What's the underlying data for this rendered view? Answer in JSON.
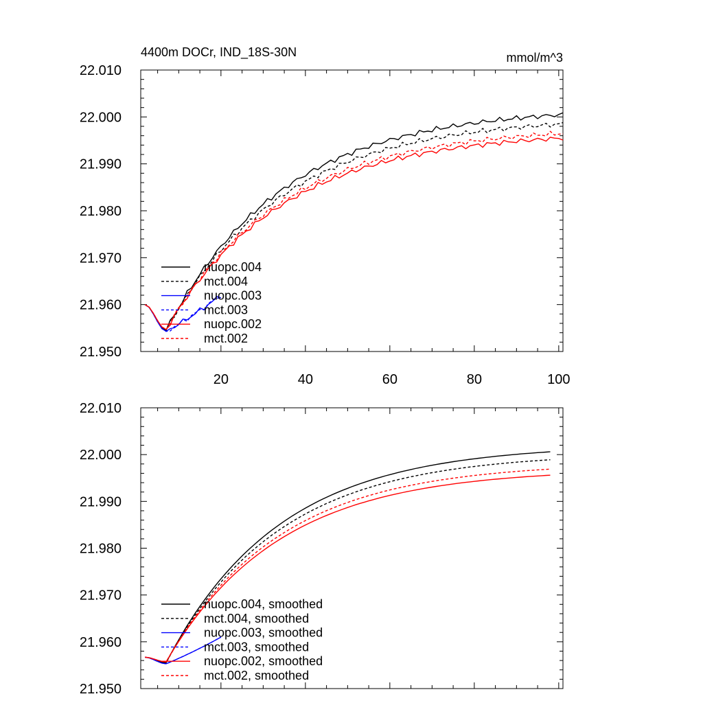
{
  "chart_data": [
    {
      "type": "line",
      "title": "4400m DOCr, IND_18S-30N",
      "units": "mmol/m^3",
      "xlim": [
        1,
        101
      ],
      "ylim": [
        21.95,
        22.01
      ],
      "yticks": [
        "21.950",
        "21.960",
        "21.970",
        "21.980",
        "21.990",
        "22.000",
        "22.010"
      ],
      "xticks": [
        "20",
        "40",
        "60",
        "80",
        "100"
      ],
      "legend_position": "lower-left",
      "noisy": true,
      "series": [
        {
          "name": "nuopc.004",
          "color": "#000000",
          "dash": false,
          "start": 21.96,
          "min": 21.9545,
          "end": 22.0005
        },
        {
          "name": "mct.004",
          "color": "#000000",
          "dash": true,
          "start": 21.96,
          "min": 21.9545,
          "end": 21.9985
        },
        {
          "name": "nuopc.003",
          "color": "#0000ff",
          "dash": false,
          "start": 21.96,
          "min": 21.9543,
          "end": 21.962
        },
        {
          "name": "mct.003",
          "color": "#0000ff",
          "dash": true,
          "start": 21.96,
          "min": 21.9543,
          "end": 21.962
        },
        {
          "name": "nuopc.002",
          "color": "#ff0000",
          "dash": false,
          "start": 21.96,
          "min": 21.9547,
          "end": 21.9955
        },
        {
          "name": "mct.002",
          "color": "#ff0000",
          "dash": true,
          "start": 21.96,
          "min": 21.9547,
          "end": 21.9965
        }
      ]
    },
    {
      "type": "line",
      "title": "",
      "units": "",
      "xlim": [
        1,
        101
      ],
      "ylim": [
        21.95,
        22.01
      ],
      "yticks": [
        "21.950",
        "21.960",
        "21.970",
        "21.980",
        "21.990",
        "22.000",
        "22.010"
      ],
      "xticks": [],
      "legend_position": "lower-left",
      "noisy": false,
      "series": [
        {
          "name": "nuopc.004, smoothed",
          "color": "#000000",
          "dash": false,
          "start": 21.9567,
          "min": 21.9555,
          "end": 22.0006
        },
        {
          "name": "mct.004, smoothed",
          "color": "#000000",
          "dash": true,
          "start": 21.9567,
          "min": 21.9555,
          "end": 21.9989
        },
        {
          "name": "nuopc.003, smoothed",
          "color": "#0000ff",
          "dash": false,
          "start": 21.9567,
          "min": 21.9553,
          "end": 21.961
        },
        {
          "name": "mct.003, smoothed",
          "color": "#0000ff",
          "dash": true,
          "start": 21.9567,
          "min": 21.9553,
          "end": 21.961
        },
        {
          "name": "nuopc.002, smoothed",
          "color": "#ff0000",
          "dash": false,
          "start": 21.9567,
          "min": 21.9557,
          "end": 21.9956
        },
        {
          "name": "mct.002, smoothed",
          "color": "#ff0000",
          "dash": true,
          "start": 21.9567,
          "min": 21.9557,
          "end": 21.9969
        }
      ]
    }
  ]
}
